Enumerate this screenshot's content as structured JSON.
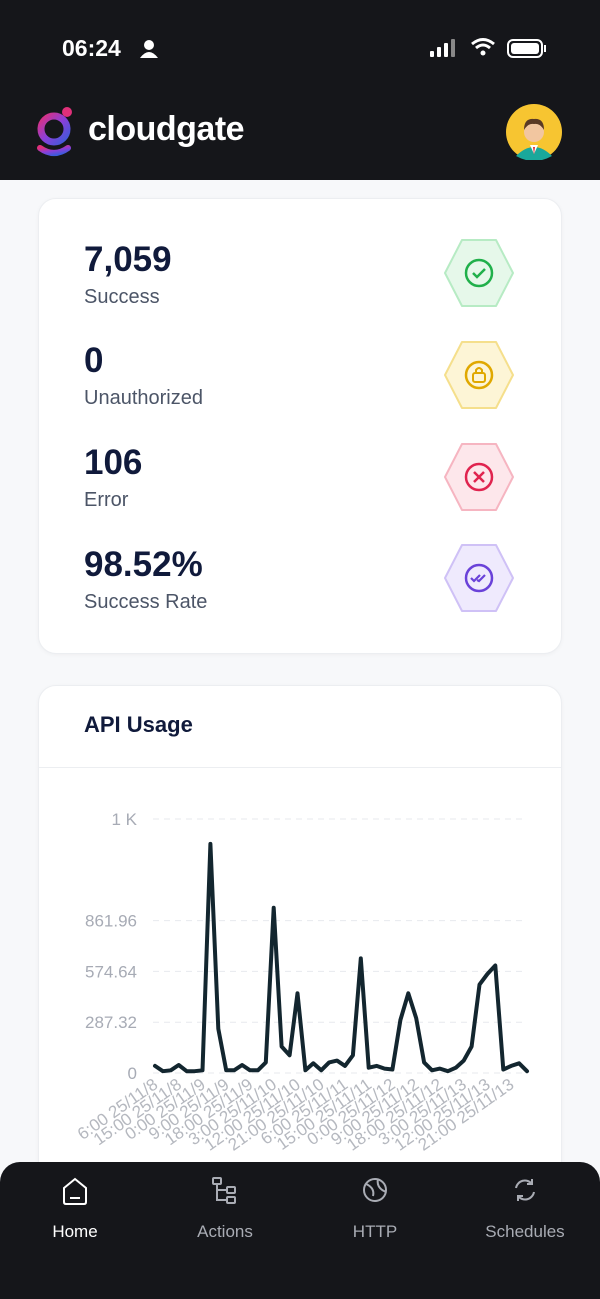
{
  "status_bar": {
    "time": "06:24"
  },
  "header": {
    "brand": "cloudgate"
  },
  "stats": [
    {
      "value": "7,059",
      "label": "Success"
    },
    {
      "value": "0",
      "label": "Unauthorized"
    },
    {
      "value": "106",
      "label": "Error"
    },
    {
      "value": "98.52%",
      "label": "Success Rate"
    }
  ],
  "chart_data": {
    "type": "line",
    "title": "API Usage",
    "categories": [
      "6:00 25/11/8",
      null,
      null,
      "15:00 25/11/8",
      null,
      null,
      "0:00 25/11/9",
      null,
      null,
      "9:00 25/11/9",
      null,
      null,
      "18:00 25/11/9",
      null,
      null,
      "3:00 25/11/10",
      null,
      null,
      "12:00 25/11/10",
      null,
      null,
      "21:00 25/11/10",
      null,
      null,
      "6:00 25/11/11",
      null,
      null,
      "15:00 25/11/11",
      null,
      null,
      "0:00 25/11/12",
      null,
      null,
      "9:00 25/11/12",
      null,
      null,
      "18:00 25/11/12",
      null,
      null,
      "3:00 25/11/13",
      null,
      null,
      "12:00 25/11/13",
      null,
      null,
      "21:00 25/11/13",
      null,
      null
    ],
    "series": [
      {
        "color": "#13262f",
        "values": [
          40,
          10,
          15,
          45,
          10,
          10,
          15,
          1296,
          250,
          15,
          15,
          45,
          15,
          15,
          60,
          935,
          150,
          100,
          451,
          15,
          55,
          15,
          60,
          70,
          40,
          100,
          648,
          30,
          40,
          25,
          20,
          300,
          451,
          310,
          60,
          15,
          25,
          10,
          30,
          70,
          150,
          500,
          560,
          608,
          20,
          40,
          55,
          10
        ]
      }
    ],
    "ylim": [
      0,
      1436.6
    ],
    "yticks": [
      0,
      287.32,
      574.64,
      861.96,
      {
        "value": 1436.6,
        "label": "1 K"
      }
    ],
    "grid": true
  },
  "nav": [
    {
      "label": "Home",
      "active": true
    },
    {
      "label": "Actions",
      "active": false
    },
    {
      "label": "HTTP",
      "active": false
    },
    {
      "label": "Schedules",
      "active": false
    }
  ]
}
